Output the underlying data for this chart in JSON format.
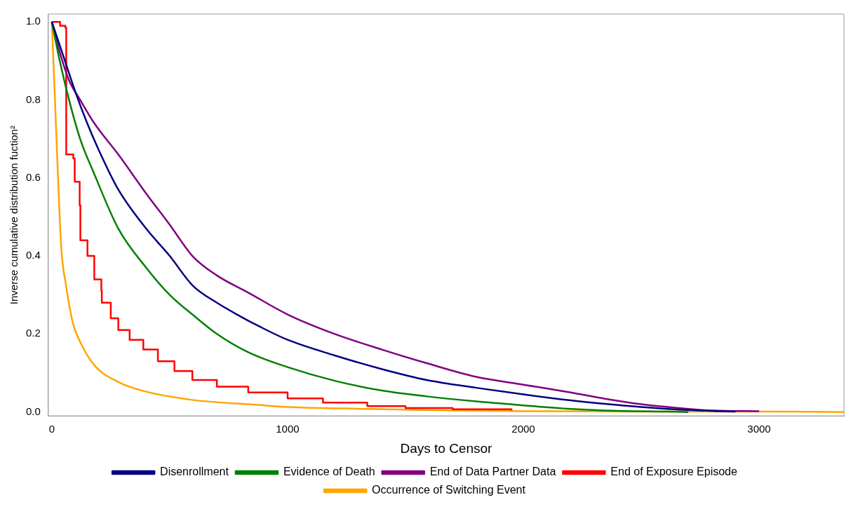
{
  "chart_data": {
    "type": "line",
    "xlabel": "Days to Censor",
    "ylabel": "Inverse cumulative distribution fuction²",
    "xlim": [
      -15,
      3360
    ],
    "xticks": [
      0,
      1000,
      2000,
      3000
    ],
    "ylim": [
      -0.01,
      1.02
    ],
    "yticks": [
      {
        "value": 0,
        "label": "0.0"
      },
      {
        "value": 0.2,
        "label": "0.2"
      },
      {
        "value": 0.4,
        "label": "0.4"
      },
      {
        "value": 0.6,
        "label": "0.6"
      },
      {
        "value": 0.8,
        "label": "0.8"
      },
      {
        "value": 1,
        "label": "1.0"
      }
    ],
    "grid": false,
    "legend": "bottom",
    "marker": "none",
    "line_style": "solid",
    "series": [
      {
        "name": "Disenrollment",
        "color": "#000080",
        "x": [
          0,
          50,
          100,
          150,
          200,
          282,
          400,
          500,
          596,
          700,
          800,
          878,
          1000,
          1200,
          1400,
          1590,
          1800,
          2000,
          2200,
          2346,
          2500,
          2700,
          2900
        ],
        "values": [
          1,
          0.91,
          0.82,
          0.74,
          0.67,
          0.57,
          0.47,
          0.4,
          0.325,
          0.28,
          0.245,
          0.22,
          0.185,
          0.145,
          0.11,
          0.082,
          0.062,
          0.045,
          0.03,
          0.021,
          0.013,
          0.005,
          0.001
        ]
      },
      {
        "name": "Evidence of Death",
        "color": "#008000",
        "x": [
          0,
          30,
          73,
          120,
          180,
          282,
          400,
          500,
          596,
          700,
          833,
          1000,
          1200,
          1400,
          1590,
          1800,
          2000,
          2200,
          2400,
          2600,
          2700
        ],
        "values": [
          1,
          0.91,
          0.8,
          0.7,
          0.61,
          0.47,
          0.37,
          0.3,
          0.25,
          0.2,
          0.153,
          0.115,
          0.08,
          0.055,
          0.04,
          0.027,
          0.017,
          0.008,
          0.003,
          0.001,
          0
        ]
      },
      {
        "name": "End of Data Partner Data",
        "color": "#800080",
        "x": [
          0,
          30,
          73,
          120,
          180,
          282,
          400,
          500,
          596,
          700,
          833,
          1000,
          1200,
          1400,
          1590,
          1800,
          2000,
          2200,
          2346,
          2500,
          2700,
          2800,
          3000
        ],
        "values": [
          1,
          0.93,
          0.85,
          0.8,
          0.74,
          0.66,
          0.56,
          0.48,
          0.4,
          0.35,
          0.306,
          0.25,
          0.2,
          0.16,
          0.125,
          0.09,
          0.07,
          0.05,
          0.034,
          0.02,
          0.008,
          0.004,
          0.002
        ]
      },
      {
        "name": "End of Exposure Episode",
        "color": "#ff0000",
        "type": "step",
        "x": [
          0,
          35,
          57,
          61,
          91,
          97,
          118,
          121,
          151,
          180,
          210,
          212,
          250,
          282,
          330,
          388,
          450,
          520,
          596,
          700,
          833,
          1000,
          1150,
          1338,
          1500,
          1700,
          1950
        ],
        "values": [
          1,
          0.99,
          0.985,
          0.66,
          0.65,
          0.59,
          0.53,
          0.44,
          0.4,
          0.34,
          0.31,
          0.28,
          0.24,
          0.21,
          0.185,
          0.16,
          0.13,
          0.105,
          0.082,
          0.065,
          0.05,
          0.035,
          0.024,
          0.015,
          0.01,
          0.007,
          0.004
        ]
      },
      {
        "name": "Occurrence of Switching Event",
        "color": "#ffa500",
        "x": [
          0,
          12,
          25,
          40,
          60,
          90,
          120,
          180,
          282,
          388,
          596,
          878,
          1000,
          1338,
          1700,
          2000,
          2500,
          3000,
          3360
        ],
        "values": [
          1,
          0.82,
          0.62,
          0.42,
          0.325,
          0.226,
          0.18,
          0.12,
          0.077,
          0.054,
          0.031,
          0.018,
          0.013,
          0.008,
          0.004,
          0.002,
          0.001,
          0.001,
          0
        ]
      }
    ]
  }
}
